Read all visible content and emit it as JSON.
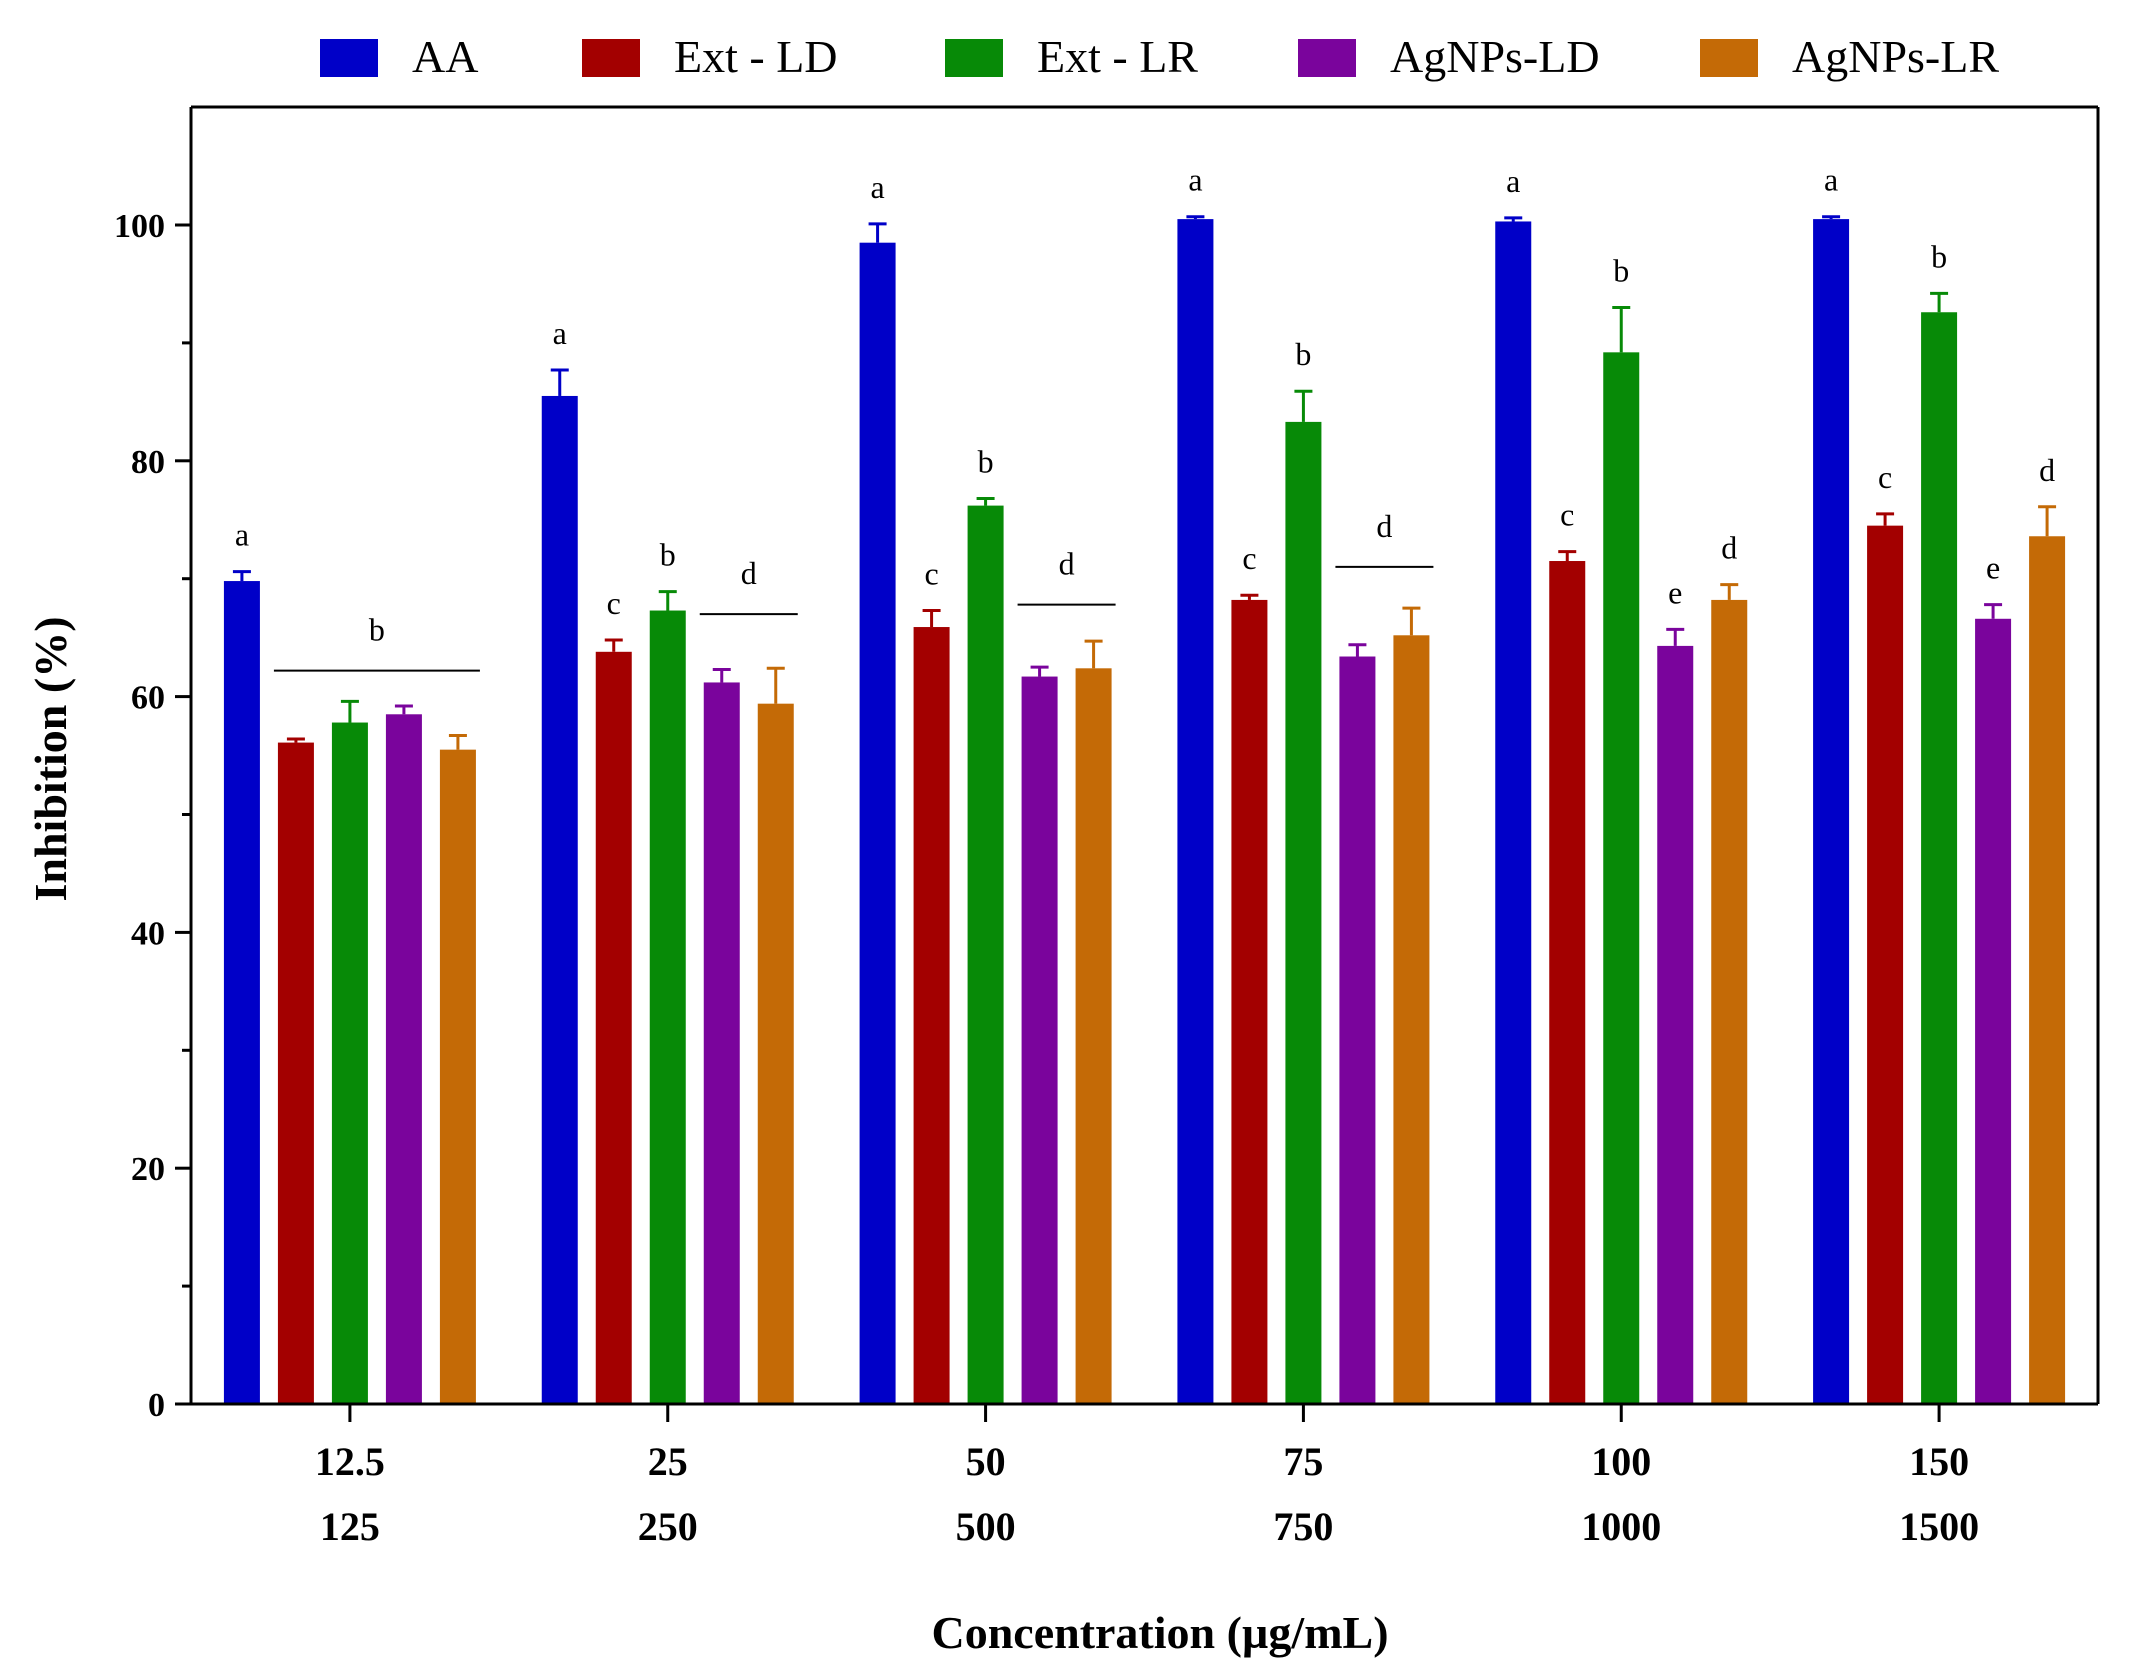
{
  "chart_data": {
    "type": "bar",
    "title": "",
    "xlabel": "Concentration (µg/mL)",
    "ylabel": "Inhibition (%)",
    "ylim": [
      0,
      100
    ],
    "yticks": [
      "0",
      "20",
      "40",
      "60",
      "80",
      "100"
    ],
    "grid": false,
    "legend_position": "top",
    "categories": [
      {
        "line1": "12.5",
        "line2": "125"
      },
      {
        "line1": "25",
        "line2": "250"
      },
      {
        "line1": "50",
        "line2": "500"
      },
      {
        "line1": "75",
        "line2": "750"
      },
      {
        "line1": "100",
        "line2": "1000"
      },
      {
        "line1": "150",
        "line2": "1500"
      }
    ],
    "series": [
      {
        "name": "AA",
        "color": "#0000c8",
        "values": [
          69.8,
          85.5,
          98.5,
          100.5,
          100.3,
          100.5
        ],
        "errors": [
          0.8,
          2.2,
          1.6,
          0.2,
          0.3,
          0.2
        ],
        "letters": [
          "a",
          "a",
          "a",
          "a",
          "a",
          "a"
        ]
      },
      {
        "name": "Ext - LD",
        "color": "#a30000",
        "values": [
          56.1,
          63.8,
          65.9,
          68.2,
          71.5,
          74.5
        ],
        "errors": [
          0.3,
          1.0,
          1.4,
          0.4,
          0.8,
          1.0
        ],
        "letters": [
          "",
          "c",
          "c",
          "c",
          "c",
          "c"
        ]
      },
      {
        "name": "Ext - LR",
        "color": "#078a07",
        "values": [
          57.8,
          67.3,
          76.2,
          83.3,
          89.2,
          92.6
        ],
        "errors": [
          1.8,
          1.6,
          0.6,
          2.6,
          3.8,
          1.6
        ],
        "letters": [
          "",
          "b",
          "b",
          "b",
          "b",
          "b"
        ]
      },
      {
        "name": "AgNPs-LD",
        "color": "#7a049c",
        "values": [
          58.5,
          61.2,
          61.7,
          63.4,
          64.3,
          66.6
        ],
        "errors": [
          0.7,
          1.1,
          0.8,
          1.0,
          1.4,
          1.2
        ],
        "letters": [
          "",
          "",
          "",
          "",
          "e",
          "e"
        ]
      },
      {
        "name": "AgNPs-LR",
        "color": "#c46a06",
        "values": [
          55.5,
          59.4,
          62.4,
          65.2,
          68.2,
          73.6
        ],
        "errors": [
          1.2,
          3.0,
          2.3,
          2.3,
          1.3,
          2.5
        ],
        "letters": [
          "",
          "",
          "",
          "",
          "d",
          "d"
        ]
      }
    ],
    "group_annotations": [
      {
        "category": 0,
        "from_series": 1,
        "to_series": 4,
        "level": 62.2,
        "letter": "b"
      },
      {
        "category": 1,
        "from_series": 3,
        "to_series": 4,
        "level": 67.0,
        "letter": "d"
      },
      {
        "category": 2,
        "from_series": 3,
        "to_series": 4,
        "level": 67.8,
        "letter": "d"
      },
      {
        "category": 3,
        "from_series": 3,
        "to_series": 4,
        "level": 71.0,
        "letter": "d"
      }
    ]
  }
}
